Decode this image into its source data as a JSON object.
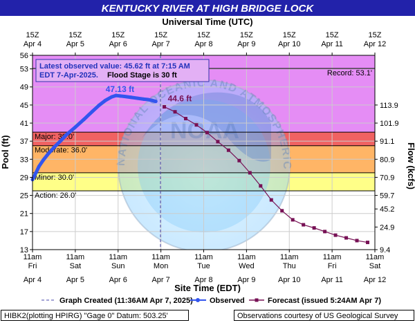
{
  "chart_data": {
    "type": "line",
    "title": "KENTUCKY RIVER AT HIGH BRIDGE LOCK",
    "top_axis_label": "Universal Time (UTC)",
    "bottom_axis_label": "Site Time (EDT)",
    "ylabel": "Pool (ft)",
    "y2label": "Flow (kcfs)",
    "ylim": [
      13,
      56
    ],
    "y_ticks": [
      13,
      17,
      21,
      25,
      29,
      33,
      37,
      41,
      45,
      49,
      53,
      56
    ],
    "y2_ticks": [
      {
        "label": "9.4",
        "stage": 13
      },
      {
        "label": "24.9",
        "stage": 18
      },
      {
        "label": "45.2",
        "stage": 22
      },
      {
        "label": "59.7",
        "stage": 25
      },
      {
        "label": "70.9",
        "stage": 29
      },
      {
        "label": "80.9",
        "stage": 33
      },
      {
        "label": "91.1",
        "stage": 37
      },
      {
        "label": "101.9",
        "stage": 41
      },
      {
        "label": "113.9",
        "stage": 45
      }
    ],
    "x_ticks": [
      {
        "top": [
          "15Z",
          "Apr 4"
        ],
        "bottom": [
          "11am",
          "Fri",
          "Apr 4"
        ]
      },
      {
        "top": [
          "15Z",
          "Apr 5"
        ],
        "bottom": [
          "11am",
          "Sat",
          "Apr 5"
        ]
      },
      {
        "top": [
          "15Z",
          "Apr 6"
        ],
        "bottom": [
          "11am",
          "Sun",
          "Apr 6"
        ]
      },
      {
        "top": [
          "15Z",
          "Apr 7"
        ],
        "bottom": [
          "11am",
          "Mon",
          "Apr 7"
        ]
      },
      {
        "top": [
          "15Z",
          "Apr 8"
        ],
        "bottom": [
          "11am",
          "Tue",
          "Apr 8"
        ]
      },
      {
        "top": [
          "15Z",
          "Apr 9"
        ],
        "bottom": [
          "11am",
          "Wed",
          "Apr 9"
        ]
      },
      {
        "top": [
          "15Z",
          "Apr 10"
        ],
        "bottom": [
          "11am",
          "Thu",
          "Apr 10"
        ]
      },
      {
        "top": [
          "15Z",
          "Apr 11"
        ],
        "bottom": [
          "11am",
          "Fri",
          "Apr 11"
        ]
      },
      {
        "top": [
          "15Z",
          "Apr 12"
        ],
        "bottom": [
          "11am",
          "Sat",
          "Apr 12"
        ]
      }
    ],
    "bands": [
      {
        "name": "major",
        "from": 39,
        "to": 56,
        "color": "#e58df5"
      },
      {
        "name": "moderate",
        "from": 36,
        "to": 39,
        "color": "#f06262"
      },
      {
        "name": "minor",
        "from": 30,
        "to": 36,
        "color": "#ffb566"
      },
      {
        "name": "action",
        "from": 26,
        "to": 30,
        "color": "#ffff88"
      }
    ],
    "thresholds": [
      {
        "label": "Major: 39.0'",
        "value": 39
      },
      {
        "label": "Moderate: 36.0'",
        "value": 36
      },
      {
        "label": "Minor: 30.0'",
        "value": 30
      },
      {
        "label": "Action: 26.0'",
        "value": 26
      },
      {
        "label": "Record: 53.1'",
        "value": 53.1
      }
    ],
    "info_box": {
      "line1": "Latest observed value: 45.62 ft at 7:15 AM",
      "line2": "EDT 7-Apr-2025.",
      "line2_bold": "Flood Stage is 30 ft"
    },
    "peak_label": "47.13 ft",
    "peak_point": {
      "day": 2.0,
      "stage": 47.13
    },
    "forecast_label": "44.6 ft",
    "graph_created_day": 2.99,
    "observed": {
      "name": "Observed",
      "color": "#3355ee",
      "x_days": [
        0.0,
        0.08,
        0.15,
        0.25,
        0.35,
        0.5,
        0.65,
        0.8,
        1.0,
        1.2,
        1.4,
        1.55,
        1.7,
        1.85,
        1.95,
        2.05,
        2.15,
        2.3,
        2.45,
        2.6,
        2.7,
        2.8,
        2.88
      ],
      "stage": [
        28.5,
        30.0,
        31.4,
        32.8,
        34.0,
        35.6,
        37.0,
        38.5,
        40.1,
        41.8,
        43.6,
        44.9,
        46.0,
        46.8,
        47.1,
        47.0,
        46.9,
        46.7,
        46.5,
        46.3,
        46.2,
        46.0,
        45.8
      ]
    },
    "forecast": {
      "name": "Forecast",
      "color": "#771155",
      "x_days": [
        3.08,
        3.33,
        3.58,
        3.83,
        4.08,
        4.33,
        4.58,
        4.83,
        5.08,
        5.33,
        5.58,
        5.83,
        6.08,
        6.33,
        6.58,
        6.83,
        7.08,
        7.33,
        7.58,
        7.83
      ],
      "stage": [
        44.6,
        43.5,
        42.0,
        40.6,
        38.9,
        36.9,
        35.0,
        32.7,
        30.0,
        27.1,
        24.0,
        21.6,
        19.6,
        18.5,
        17.8,
        17.0,
        16.2,
        15.6,
        15.0,
        14.6
      ]
    },
    "legend": {
      "created": "Graph Created (11:36AM Apr 7, 2025)",
      "observed": "Observed",
      "forecast": "Forecast (issued 5:24AM Apr 7)"
    },
    "footer_left": "HIBK2(plotting HPIRG) \"Gage 0\" Datum: 503.25'",
    "footer_right": "Observations courtesy of US Geological Survey",
    "watermark_text": "NATIONAL OCEANIC AND ATMOSPHERIC ADMINISTRATION · U.S. DEPARTMENT OF COMMERCE",
    "watermark_center": "NOAA"
  }
}
